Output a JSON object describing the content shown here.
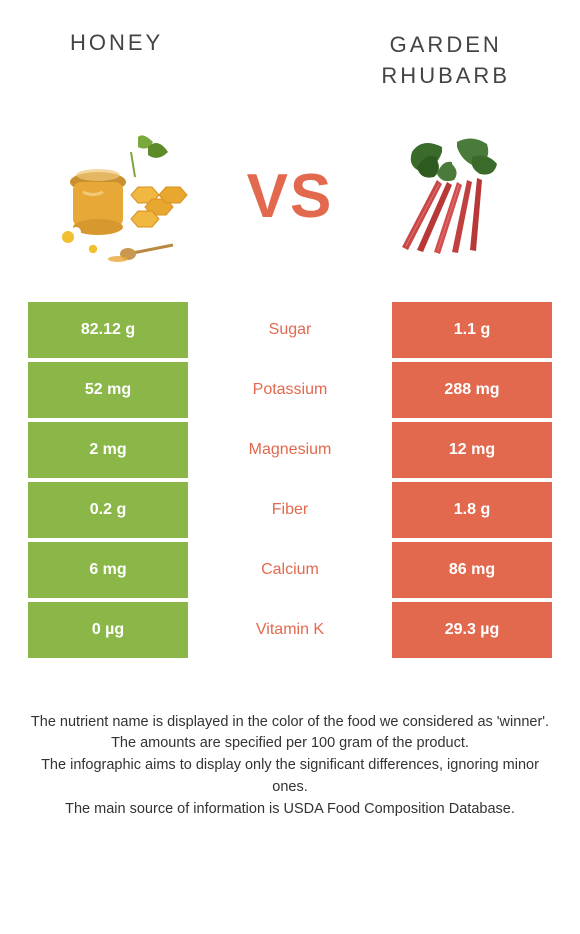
{
  "header": {
    "left": "HONEY",
    "right": "GARDEN\nRHUBARB"
  },
  "vs": "VS",
  "colors": {
    "honey": "#8bb648",
    "rhubarb": "#e2694e",
    "white": "#ffffff"
  },
  "rows": [
    {
      "left": "82.12 g",
      "label": "Sugar",
      "right": "1.1 g",
      "left_bg": "#8bb648",
      "left_color": "#ffffff",
      "label_color": "#e2694e",
      "right_bg": "#e2694e",
      "right_color": "#ffffff"
    },
    {
      "left": "52 mg",
      "label": "Potassium",
      "right": "288 mg",
      "left_bg": "#8bb648",
      "left_color": "#ffffff",
      "label_color": "#e2694e",
      "right_bg": "#e2694e",
      "right_color": "#ffffff"
    },
    {
      "left": "2 mg",
      "label": "Magnesium",
      "right": "12 mg",
      "left_bg": "#8bb648",
      "left_color": "#ffffff",
      "label_color": "#e2694e",
      "right_bg": "#e2694e",
      "right_color": "#ffffff"
    },
    {
      "left": "0.2 g",
      "label": "Fiber",
      "right": "1.8 g",
      "left_bg": "#8bb648",
      "left_color": "#ffffff",
      "label_color": "#e2694e",
      "right_bg": "#e2694e",
      "right_color": "#ffffff"
    },
    {
      "left": "6 mg",
      "label": "Calcium",
      "right": "86 mg",
      "left_bg": "#8bb648",
      "left_color": "#ffffff",
      "label_color": "#e2694e",
      "right_bg": "#e2694e",
      "right_color": "#ffffff"
    },
    {
      "left": "0 µg",
      "label": "Vitamin K",
      "right": "29.3 µg",
      "left_bg": "#8bb648",
      "left_color": "#ffffff",
      "label_color": "#e2694e",
      "right_bg": "#e2694e",
      "right_color": "#ffffff"
    }
  ],
  "footer": {
    "line1": "The nutrient name is displayed in the color of the food we considered as 'winner'.",
    "line2": "The amounts are specified per 100 gram of the product.",
    "line3": "The infographic aims to display only the significant differences, ignoring minor ones.",
    "line4": "The main source of information is USDA Food Composition Database."
  }
}
